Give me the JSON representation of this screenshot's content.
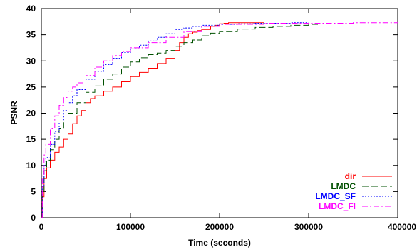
{
  "chart_data": {
    "type": "line",
    "title": "",
    "xlabel": "Time (seconds)",
    "ylabel": "PSNR",
    "xlim": [
      0,
      400000
    ],
    "ylim": [
      0,
      40
    ],
    "xticks": [
      0,
      100000,
      200000,
      300000,
      400000
    ],
    "yticks": [
      0,
      5,
      10,
      15,
      20,
      25,
      30,
      35,
      40
    ],
    "grid": false,
    "legend": "bottom-right",
    "series": [
      {
        "name": "dir",
        "color": "#ff0000",
        "dash": "solid",
        "x": [
          0,
          1000,
          3000,
          6000,
          10000,
          15000,
          20000,
          25000,
          30000,
          35000,
          40000,
          45000,
          50000,
          55000,
          60000,
          70000,
          80000,
          90000,
          100000,
          110000,
          120000,
          130000,
          140000,
          150000,
          155000,
          160000,
          165000,
          170000,
          175000,
          180000,
          185000,
          190000,
          195000,
          200000,
          205000,
          210000,
          220000,
          230000,
          240000,
          250000
        ],
        "y": [
          0,
          4,
          7.5,
          9.5,
          11,
          12.5,
          13.5,
          15,
          16,
          18,
          19.5,
          20.5,
          22,
          22.8,
          23.3,
          24.2,
          25,
          26,
          27,
          27.8,
          28.6,
          29.5,
          30.5,
          32,
          33.5,
          34.5,
          35.2,
          35.5,
          35.8,
          36,
          36,
          36.6,
          36.8,
          37.1,
          37.2,
          37.3,
          37.3,
          37.3,
          37.3,
          37.3
        ]
      },
      {
        "name": "LMDC",
        "color": "#005000",
        "dash": "dash",
        "x": [
          0,
          1000,
          3000,
          6000,
          10000,
          15000,
          20000,
          25000,
          30000,
          40000,
          50000,
          60000,
          70000,
          80000,
          90000,
          100000,
          110000,
          120000,
          130000,
          140000,
          150000,
          160000,
          170000,
          180000,
          190000,
          200000,
          220000,
          240000,
          260000,
          280000,
          300000,
          310000
        ],
        "y": [
          0,
          5,
          9,
          11,
          13,
          15,
          17,
          18.5,
          20,
          22,
          24,
          25.2,
          26.5,
          27.5,
          28.8,
          29.8,
          30.6,
          31.2,
          31.5,
          32,
          32.8,
          33.5,
          34,
          34.8,
          35.3,
          35.6,
          36.1,
          36.4,
          36.6,
          36.8,
          37,
          37.1
        ]
      },
      {
        "name": "LMDC_SF",
        "color": "#0000ff",
        "dash": "dot",
        "x": [
          0,
          1000,
          3000,
          5000,
          10000,
          15000,
          20000,
          25000,
          30000,
          35000,
          40000,
          50000,
          60000,
          70000,
          80000,
          90000,
          100000,
          110000,
          120000,
          130000,
          140000,
          150000,
          160000,
          170000,
          180000,
          200000,
          220000,
          240000,
          260000,
          280000,
          300000
        ],
        "y": [
          0,
          6,
          10,
          11.5,
          14,
          16.5,
          18.5,
          20.5,
          22,
          23.3,
          24.5,
          26.5,
          28,
          29.3,
          30.5,
          31.6,
          32.3,
          33,
          33.8,
          34.5,
          35.2,
          36,
          36.3,
          36.6,
          36.8,
          37,
          37.1,
          37.2,
          37.2,
          37.3,
          37.3
        ]
      },
      {
        "name": "LMDC_FI",
        "color": "#ff00ff",
        "dash": "dashdot",
        "x": [
          0,
          1000,
          3000,
          5000,
          10000,
          15000,
          20000,
          25000,
          30000,
          35000,
          40000,
          50000,
          60000,
          70000,
          80000,
          90000,
          100000,
          120000,
          140000,
          160000,
          180000,
          200000,
          250000,
          300000,
          350000,
          400000
        ],
        "y": [
          0,
          8,
          12,
          14,
          17,
          19.5,
          21.5,
          23,
          24.2,
          25,
          25.8,
          27.2,
          28.8,
          30,
          31,
          31.8,
          32.5,
          33.5,
          34.5,
          35.6,
          36.6,
          37,
          37.2,
          37.2,
          37.3,
          37.3
        ]
      }
    ]
  }
}
